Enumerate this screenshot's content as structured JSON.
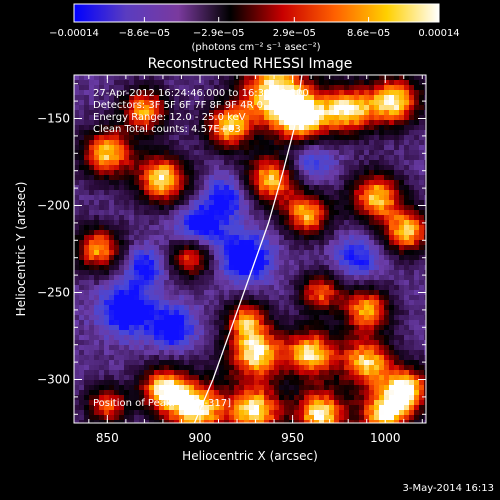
{
  "chart_data": {
    "type": "heatmap",
    "title": "Reconstructed RHESSI Image",
    "xlabel": "Heliocentric X (arcsec)",
    "ylabel": "Heliocentric Y (arcsec)",
    "xlim": [
      832,
      1022
    ],
    "ylim": [
      -325,
      -125
    ],
    "x_ticks": [
      {
        "value": 850,
        "label": "850"
      },
      {
        "value": 900,
        "label": "900"
      },
      {
        "value": 950,
        "label": "950"
      },
      {
        "value": 1000,
        "label": "1000"
      }
    ],
    "y_ticks": [
      {
        "value": -150,
        "label": "−150"
      },
      {
        "value": -200,
        "label": "−200"
      },
      {
        "value": -250,
        "label": "−250"
      },
      {
        "value": -300,
        "label": "−300"
      }
    ],
    "colorbar": {
      "min": -0.00014,
      "max": 0.00014,
      "tick_values": [
        -0.00014,
        -8.6e-05,
        -2.9e-05,
        2.9e-05,
        8.6e-05,
        0.00014
      ],
      "tick_labels": [
        "−0.00014",
        "−8.6e−05",
        "−2.9e−05",
        "2.9e−05",
        "8.6e−05",
        "0.00014"
      ],
      "unit_label": "(photons cm⁻² s⁻¹ asec⁻²)",
      "stops": [
        "#0000ff",
        "#5a3cc0",
        "#7a3a9e",
        "#000000",
        "#c80000",
        "#ff6000",
        "#ffd000",
        "#ffffff"
      ]
    },
    "annotations": [
      "27-Apr-2012 16:24:46.000 to 16:30:28.000",
      "Detectors: 3F 5F 6F 7F 8F 9F 4R 0",
      "Energy Range: 12.0 - 25.0 keV",
      "Clean    Total counts: 4.57E+03"
    ],
    "peak_label": "Position of Peak: [898,-317]",
    "peak": [
      898,
      -317
    ],
    "limb_curve": [
      [
        897,
        -325
      ],
      [
        907,
        -300
      ],
      [
        917,
        -270
      ],
      [
        927,
        -240
      ],
      [
        937,
        -210
      ],
      [
        945,
        -180
      ],
      [
        951,
        -155
      ],
      [
        955,
        -125
      ]
    ],
    "blobs": [
      {
        "x": 940,
        "y": -135,
        "v": 1.0,
        "s": 14
      },
      {
        "x": 955,
        "y": -150,
        "v": 0.9,
        "s": 10
      },
      {
        "x": 980,
        "y": -145,
        "v": 0.9,
        "s": 10
      },
      {
        "x": 1005,
        "y": -140,
        "v": 0.95,
        "s": 10
      },
      {
        "x": 995,
        "y": -195,
        "v": 0.85,
        "s": 10
      },
      {
        "x": 1012,
        "y": -215,
        "v": 0.85,
        "s": 9
      },
      {
        "x": 938,
        "y": -185,
        "v": 0.85,
        "s": 10
      },
      {
        "x": 958,
        "y": -205,
        "v": 0.8,
        "s": 9
      },
      {
        "x": 880,
        "y": -185,
        "v": 0.95,
        "s": 10
      },
      {
        "x": 850,
        "y": -170,
        "v": 0.85,
        "s": 10
      },
      {
        "x": 870,
        "y": -145,
        "v": 0.75,
        "s": 9
      },
      {
        "x": 915,
        "y": -155,
        "v": 0.8,
        "s": 9
      },
      {
        "x": 845,
        "y": -225,
        "v": 0.75,
        "s": 9
      },
      {
        "x": 895,
        "y": -230,
        "v": 0.6,
        "s": 8
      },
      {
        "x": 990,
        "y": -260,
        "v": 0.8,
        "s": 9
      },
      {
        "x": 965,
        "y": -250,
        "v": 0.6,
        "s": 8
      },
      {
        "x": 925,
        "y": -265,
        "v": 0.55,
        "s": 8
      },
      {
        "x": 930,
        "y": -285,
        "v": 0.95,
        "s": 11
      },
      {
        "x": 960,
        "y": -285,
        "v": 0.9,
        "s": 10
      },
      {
        "x": 990,
        "y": -290,
        "v": 0.85,
        "s": 10
      },
      {
        "x": 1012,
        "y": -305,
        "v": 0.85,
        "s": 9
      },
      {
        "x": 850,
        "y": -315,
        "v": 0.6,
        "s": 8
      },
      {
        "x": 880,
        "y": -305,
        "v": 0.8,
        "s": 9
      },
      {
        "x": 898,
        "y": -317,
        "v": 1.0,
        "s": 12
      },
      {
        "x": 930,
        "y": -318,
        "v": 0.95,
        "s": 10
      },
      {
        "x": 965,
        "y": -320,
        "v": 1.0,
        "s": 10
      },
      {
        "x": 1000,
        "y": -320,
        "v": 0.95,
        "s": 10
      },
      {
        "x": 900,
        "y": -212,
        "v": -0.75,
        "s": 9
      },
      {
        "x": 925,
        "y": -230,
        "v": -0.8,
        "s": 10
      },
      {
        "x": 860,
        "y": -260,
        "v": -0.8,
        "s": 10
      },
      {
        "x": 885,
        "y": -270,
        "v": -0.7,
        "s": 9
      },
      {
        "x": 960,
        "y": -175,
        "v": -0.5,
        "s": 9
      },
      {
        "x": 985,
        "y": -230,
        "v": -0.55,
        "s": 9
      },
      {
        "x": 870,
        "y": -235,
        "v": -0.55,
        "s": 8
      },
      {
        "x": 915,
        "y": -195,
        "v": -0.6,
        "s": 9
      }
    ]
  },
  "footer": {
    "date": "3-May-2014 16:13"
  }
}
